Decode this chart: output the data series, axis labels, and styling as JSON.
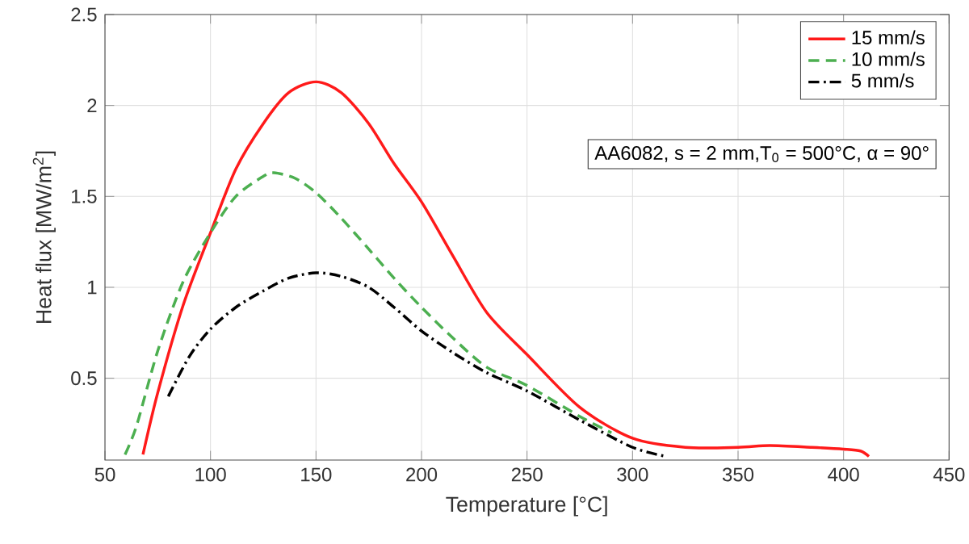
{
  "chart_data": {
    "type": "line",
    "xlabel": "Temperature [°C]",
    "ylabel": "Heat flux [MW/m$^{2}$]",
    "xlim": [
      50,
      450
    ],
    "ylim": [
      0.05,
      2.5
    ],
    "xticks": [
      50,
      100,
      150,
      200,
      250,
      300,
      350,
      400,
      450
    ],
    "yticks": [
      0.5,
      1,
      1.5,
      2,
      2.5
    ],
    "grid": true,
    "legend": "top right",
    "annotations": [
      "AA6082, s = 2 mm,T$_{0}$ = 500°C, α = 90°"
    ],
    "series": [
      {
        "name": "15 mm/s",
        "color": "#ff1a1a",
        "line_style": "solid",
        "x": [
          68,
          75,
          87,
          100,
          112,
          125,
          137,
          150,
          162,
          175,
          187,
          200,
          215,
          231,
          250,
          275,
          300,
          325,
          350,
          365,
          385,
          400,
          408,
          412
        ],
        "values": [
          0.08,
          0.42,
          0.9,
          1.3,
          1.65,
          1.9,
          2.07,
          2.13,
          2.07,
          1.9,
          1.68,
          1.47,
          1.17,
          0.86,
          0.63,
          0.34,
          0.17,
          0.12,
          0.12,
          0.13,
          0.12,
          0.11,
          0.1,
          0.07
        ]
      },
      {
        "name": "10 mm/s",
        "color": "#4caf50",
        "line_style": "dashed",
        "x": [
          59.5,
          65,
          75,
          87,
          100,
          112,
          125,
          130,
          140,
          150,
          162,
          175,
          187,
          200,
          215,
          231,
          250,
          275,
          290
        ],
        "values": [
          0.08,
          0.24,
          0.65,
          1.03,
          1.3,
          1.5,
          1.61,
          1.63,
          1.6,
          1.52,
          1.38,
          1.21,
          1.05,
          0.89,
          0.72,
          0.56,
          0.46,
          0.29,
          0.2
        ]
      },
      {
        "name": "5 mm/s",
        "color": "#000000",
        "line_style": "dashdot",
        "x": [
          80,
          90,
          100,
          112,
          125,
          137,
          150,
          162,
          175,
          187,
          200,
          215,
          231,
          250,
          275,
          300,
          316
        ],
        "values": [
          0.4,
          0.62,
          0.77,
          0.89,
          0.98,
          1.05,
          1.08,
          1.06,
          1.0,
          0.89,
          0.76,
          0.64,
          0.53,
          0.43,
          0.27,
          0.12,
          0.07
        ]
      }
    ]
  }
}
